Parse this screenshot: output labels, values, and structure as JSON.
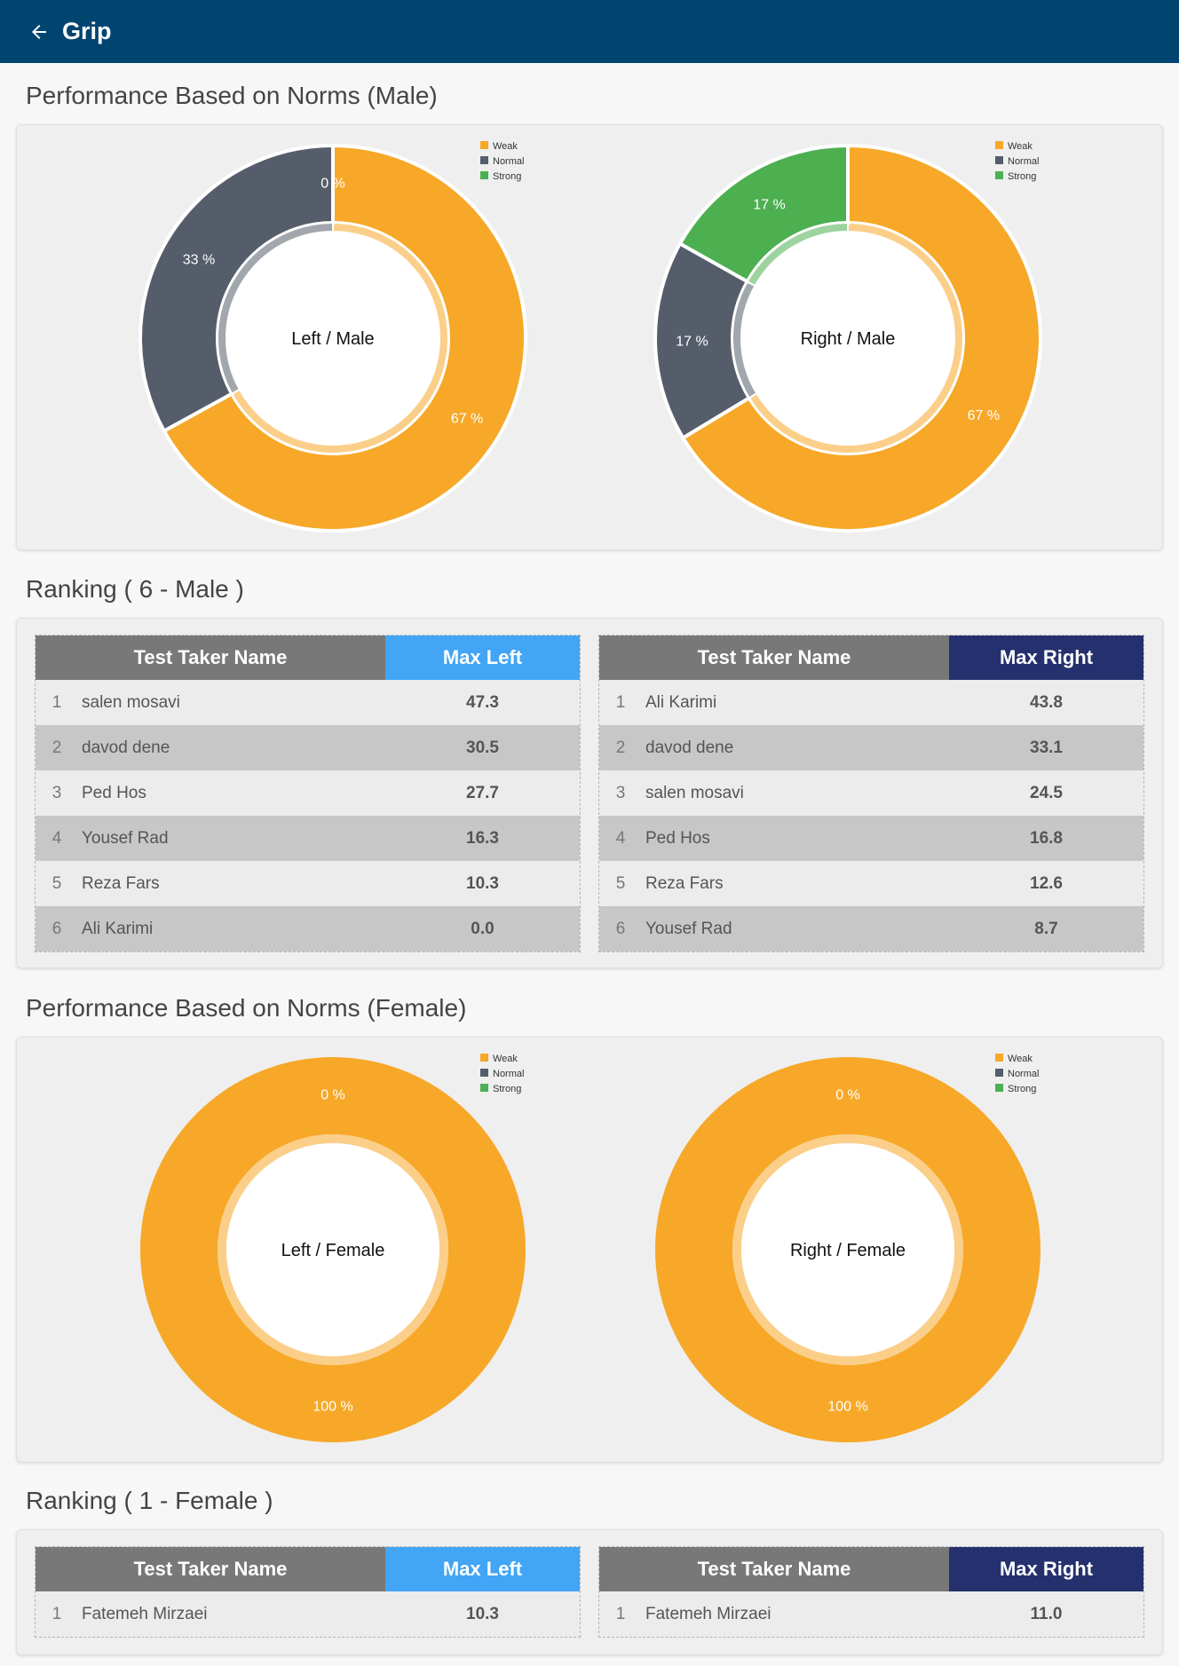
{
  "app": {
    "title": "Grip",
    "back_icon": "arrow-left-icon"
  },
  "colors": {
    "appbar": "#004570",
    "weak": "#F7A828",
    "normal": "#565D6A",
    "strong": "#4CAF50",
    "max_left_header": "#42A5F5",
    "max_right_header": "#25316E",
    "name_header": "#787878"
  },
  "sections": {
    "male_norms_title": "Performance Based on Norms (Male)",
    "male_ranking_title": "Ranking ( 6 - Male )",
    "female_norms_title": "Performance Based on Norms (Female)",
    "female_ranking_title": "Ranking ( 1 - Female )"
  },
  "chart_data": [
    {
      "type": "pie",
      "variant": "donut",
      "center_label": "Left / Male",
      "legend": [
        "Weak",
        "Normal",
        "Strong"
      ],
      "legend_position": "top-right",
      "slices": [
        {
          "label": "Weak",
          "value": 67,
          "text": "67 %"
        },
        {
          "label": "Normal",
          "value": 33,
          "text": "33 %"
        },
        {
          "label": "Strong",
          "value": 0,
          "text": "0 %"
        }
      ]
    },
    {
      "type": "pie",
      "variant": "donut",
      "center_label": "Right / Male",
      "legend": [
        "Weak",
        "Normal",
        "Strong"
      ],
      "legend_position": "top-right",
      "slices": [
        {
          "label": "Weak",
          "value": 67,
          "text": "67 %"
        },
        {
          "label": "Normal",
          "value": 17,
          "text": "17 %"
        },
        {
          "label": "Strong",
          "value": 17,
          "text": "17 %"
        }
      ]
    },
    {
      "type": "pie",
      "variant": "donut",
      "center_label": "Left / Female",
      "legend": [
        "Weak",
        "Normal",
        "Strong"
      ],
      "legend_position": "top-right",
      "slices": [
        {
          "label": "Weak",
          "value": 100,
          "text": "100 %"
        },
        {
          "label": "Normal",
          "value": 0,
          "text": "0 %"
        },
        {
          "label": "Strong",
          "value": 0,
          "text": ""
        }
      ]
    },
    {
      "type": "pie",
      "variant": "donut",
      "center_label": "Right / Female",
      "legend": [
        "Weak",
        "Normal",
        "Strong"
      ],
      "legend_position": "top-right",
      "slices": [
        {
          "label": "Weak",
          "value": 100,
          "text": "100 %"
        },
        {
          "label": "Normal",
          "value": 0,
          "text": "0 %"
        },
        {
          "label": "Strong",
          "value": 0,
          "text": ""
        }
      ]
    }
  ],
  "tables": {
    "male_left": {
      "headers": [
        "Test Taker Name",
        "Max Left"
      ],
      "rows": [
        [
          "1",
          "salen mosavi",
          "47.3"
        ],
        [
          "2",
          "davod dene",
          "30.5"
        ],
        [
          "3",
          "Ped Hos",
          "27.7"
        ],
        [
          "4",
          "Yousef Rad",
          "16.3"
        ],
        [
          "5",
          "Reza Fars",
          "10.3"
        ],
        [
          "6",
          "Ali Karimi",
          "0.0"
        ]
      ]
    },
    "male_right": {
      "headers": [
        "Test Taker Name",
        "Max Right"
      ],
      "rows": [
        [
          "1",
          "Ali Karimi",
          "43.8"
        ],
        [
          "2",
          "davod dene",
          "33.1"
        ],
        [
          "3",
          "salen mosavi",
          "24.5"
        ],
        [
          "4",
          "Ped Hos",
          "16.8"
        ],
        [
          "5",
          "Reza Fars",
          "12.6"
        ],
        [
          "6",
          "Yousef Rad",
          "8.7"
        ]
      ]
    },
    "female_left": {
      "headers": [
        "Test Taker Name",
        "Max Left"
      ],
      "rows": [
        [
          "1",
          "Fatemeh  Mirzaei",
          "10.3"
        ]
      ]
    },
    "female_right": {
      "headers": [
        "Test Taker Name",
        "Max Right"
      ],
      "rows": [
        [
          "1",
          "Fatemeh  Mirzaei",
          "11.0"
        ]
      ]
    }
  }
}
